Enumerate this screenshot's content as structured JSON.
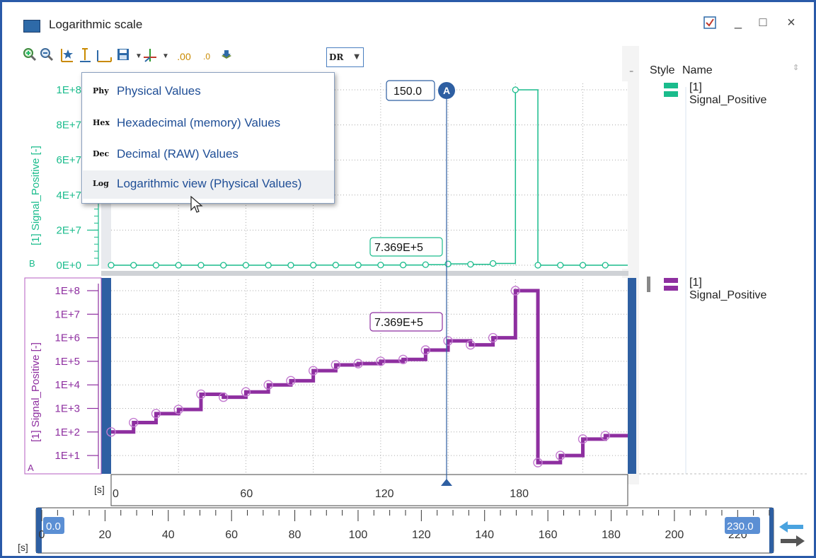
{
  "window": {
    "title": "Logarithmic scale",
    "controls": {
      "help": "✔",
      "minimize": "_",
      "maximize": "□",
      "close": "×"
    }
  },
  "toolbar": {
    "icons": [
      "zoom-in-icon",
      "zoom-out-icon",
      "auto-scale-icon",
      "y-fit-icon",
      "x-fit-icon",
      "save-icon",
      "axis-icon",
      "decimal-more-icon",
      "decimal-less-icon",
      "export-icon"
    ],
    "mode_dropdown": "DR",
    "decimal_more": ".00",
    "decimal_less": ".0"
  },
  "display_menu": {
    "items": [
      {
        "abbr": "Phy",
        "label": "Physical Values",
        "highlighted": false
      },
      {
        "abbr": "Hex",
        "label": "Hexadecimal (memory) Values",
        "highlighted": false
      },
      {
        "abbr": "Dec",
        "label": "Decimal (RAW) Values",
        "highlighted": false
      },
      {
        "abbr": "Log",
        "label": "Logarithmic view (Physical Values)",
        "highlighted": true
      }
    ]
  },
  "legend": {
    "header_style": "Style",
    "header_name": "Name",
    "top_entry": "[1] Signal_Positive",
    "bottom_entry": "[1] Signal_Positive",
    "top_color": "#1abc8c",
    "bottom_color": "#8e2fa0"
  },
  "cursor": {
    "label": "A",
    "value": "150.0",
    "top_readout": "7.369E+5",
    "bottom_readout": "7.369E+5"
  },
  "top_axis": {
    "group_label": "B",
    "axis_title": "[1] Signal_Positive [-]",
    "ticks": [
      "1E+8",
      "8E+7",
      "6E+7",
      "4E+7",
      "2E+7",
      "0E+0"
    ]
  },
  "bottom_axis": {
    "group_label": "A",
    "axis_title": "[1] Signal_Positive [-]",
    "ticks": [
      "1E+8",
      "1E+7",
      "1E+6",
      "1E+5",
      "1E+4",
      "1E+3",
      "1E+2",
      "1E+1"
    ]
  },
  "x_axis": {
    "unit": "[s]",
    "ticks": [
      "0",
      "60",
      "120",
      "180"
    ]
  },
  "overview": {
    "unit": "[s]",
    "start_badge": "0.0",
    "end_badge": "230.0",
    "ticks": [
      "0",
      "20",
      "40",
      "60",
      "80",
      "100",
      "120",
      "140",
      "160",
      "180",
      "200",
      "220"
    ]
  },
  "chart_data": [
    {
      "type": "line",
      "title": "",
      "xlabel": "[s]",
      "ylabel": "[1] Signal_Positive [-]",
      "xlim": [
        0,
        230
      ],
      "ylim": [
        0,
        100000000
      ],
      "grid": true,
      "series": [
        {
          "name": "[1] Signal_Positive",
          "x": [
            0,
            10,
            20,
            30,
            40,
            50,
            60,
            70,
            80,
            90,
            100,
            110,
            120,
            130,
            140,
            150,
            160,
            170,
            180,
            190,
            200,
            210,
            220
          ],
          "y": [
            100,
            250,
            600,
            900,
            4000,
            3000,
            5000,
            10000,
            15000,
            40000,
            70000,
            80000,
            100000,
            120000,
            300000,
            736900,
            500000,
            1000000,
            100000000,
            5,
            10,
            50,
            70
          ]
        }
      ]
    },
    {
      "type": "line",
      "title": "",
      "xlabel": "[s]",
      "ylabel": "[1] Signal_Positive [-]",
      "xlim": [
        0,
        230
      ],
      "ylim": [
        1,
        100000000
      ],
      "yscale": "log",
      "grid": true,
      "series": [
        {
          "name": "[1] Signal_Positive",
          "x": [
            0,
            10,
            20,
            30,
            40,
            50,
            60,
            70,
            80,
            90,
            100,
            110,
            120,
            130,
            140,
            150,
            160,
            170,
            180,
            190,
            200,
            210,
            220
          ],
          "y": [
            100,
            250,
            600,
            900,
            4000,
            3000,
            5000,
            10000,
            15000,
            40000,
            70000,
            80000,
            100000,
            120000,
            300000,
            736900,
            500000,
            1000000,
            100000000,
            5,
            10,
            50,
            70
          ]
        }
      ]
    }
  ]
}
